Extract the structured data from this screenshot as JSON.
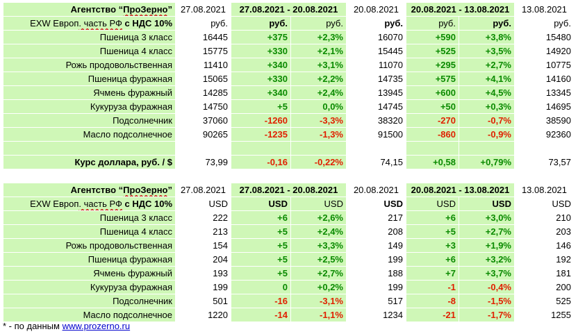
{
  "tables": [
    {
      "title_prefix": "Агентство “",
      "title_brand": "ПроЗерно",
      "title_suffix": "”",
      "date_a": "27.08.2021",
      "range_1": "27.08.2021 - 20.08.2021",
      "date_b": "20.08.2021",
      "range_2": "20.08.2021 - 13.08.2021",
      "date_c": "13.08.2021",
      "units_label_prefix": "EXW Европ",
      "units_label_mid": ". часть РФ",
      "units_label_suffix": " с НДС 10%",
      "units": [
        "руб.",
        "руб.",
        "руб.",
        "руб.",
        "руб.",
        "руб.",
        "руб."
      ],
      "rows": [
        {
          "name": "Пшеница 3 класс",
          "v1": "16445",
          "d1": "+375",
          "p1": "+2,3%",
          "v2": "16070",
          "d2": "+590",
          "p2": "+3,8%",
          "v3": "15480"
        },
        {
          "name": "Пшеница 4 класс",
          "v1": "15775",
          "d1": "+330",
          "p1": "+2,1%",
          "v2": "15445",
          "d2": "+525",
          "p2": "+3,5%",
          "v3": "14920"
        },
        {
          "name": "Рожь продовольственная",
          "v1": "11410",
          "d1": "+340",
          "p1": "+3,1%",
          "v2": "11070",
          "d2": "+295",
          "p2": "+2,7%",
          "v3": "10775"
        },
        {
          "name": "Пшеница фуражная",
          "v1": "15065",
          "d1": "+330",
          "p1": "+2,2%",
          "v2": "14735",
          "d2": "+575",
          "p2": "+4,1%",
          "v3": "14160"
        },
        {
          "name": "Ячмень фуражный",
          "v1": "14285",
          "d1": "+340",
          "p1": "+2,4%",
          "v2": "13945",
          "d2": "+600",
          "p2": "+4,5%",
          "v3": "13345"
        },
        {
          "name": "Кукуруза фуражная",
          "v1": "14750",
          "d1": "+5",
          "p1": "0,0%",
          "v2": "14745",
          "d2": "+50",
          "p2": "+0,3%",
          "v3": "14695"
        },
        {
          "name": "Подсолнечник",
          "v1": "37060",
          "d1": "-1260",
          "p1": "-3,3%",
          "v2": "38320",
          "d2": "-270",
          "p2": "-0,7%",
          "v3": "38590"
        },
        {
          "name": "Масло подсолнечное",
          "v1": "90265",
          "d1": "-1235",
          "p1": "-1,3%",
          "v2": "91500",
          "d2": "-860",
          "p2": "-0,9%",
          "v3": "92360"
        }
      ],
      "fx": {
        "name": "Курс доллара, руб. / $",
        "v1": "73,99",
        "d1": "-0,16",
        "p1": "-0,22%",
        "v2": "74,15",
        "d2": "+0,58",
        "p2": "+0,79%",
        "v3": "73,57"
      }
    },
    {
      "title_prefix": "Агентство “",
      "title_brand": "ПроЗерно",
      "title_suffix": "”",
      "date_a": "27.08.2021",
      "range_1": "27.08.2021 - 20.08.2021",
      "date_b": "20.08.2021",
      "range_2": "20.08.2021 - 13.08.2021",
      "date_c": "13.08.2021",
      "units_label_prefix": "EXW Европ",
      "units_label_mid": ". часть РФ",
      "units_label_suffix": " с НДС 10%",
      "units": [
        "USD",
        "USD",
        "USD",
        "USD",
        "USD",
        "USD",
        "USD"
      ],
      "rows": [
        {
          "name": "Пшеница 3 класс",
          "v1": "222",
          "d1": "+6",
          "p1": "+2,6%",
          "v2": "217",
          "d2": "+6",
          "p2": "+3,0%",
          "v3": "210"
        },
        {
          "name": "Пшеница 4 класс",
          "v1": "213",
          "d1": "+5",
          "p1": "+2,4%",
          "v2": "208",
          "d2": "+5",
          "p2": "+2,7%",
          "v3": "203"
        },
        {
          "name": "Рожь продовольственная",
          "v1": "154",
          "d1": "+5",
          "p1": "+3,3%",
          "v2": "149",
          "d2": "+3",
          "p2": "+1,9%",
          "v3": "146"
        },
        {
          "name": "Пшеница фуражная",
          "v1": "204",
          "d1": "+5",
          "p1": "+2,5%",
          "v2": "199",
          "d2": "+6",
          "p2": "+3,2%",
          "v3": "192"
        },
        {
          "name": "Ячмень фуражный",
          "v1": "193",
          "d1": "+5",
          "p1": "+2,7%",
          "v2": "188",
          "d2": "+7",
          "p2": "+3,7%",
          "v3": "181"
        },
        {
          "name": "Кукуруза фуражная",
          "v1": "199",
          "d1": "0",
          "p1": "+0,2%",
          "v2": "199",
          "d2": "-1",
          "p2": "-0,4%",
          "v3": "200"
        },
        {
          "name": "Подсолнечник",
          "v1": "501",
          "d1": "-16",
          "p1": "-3,1%",
          "v2": "517",
          "d2": "-8",
          "p2": "-1,5%",
          "v3": "525"
        },
        {
          "name": "Масло подсолнечное",
          "v1": "1220",
          "d1": "-14",
          "p1": "-1,1%",
          "v2": "1234",
          "d2": "-21",
          "p2": "-1,7%",
          "v3": "1255"
        }
      ]
    }
  ],
  "footer": {
    "prefix": "* - по данным ",
    "link": "www.prozerno.ru"
  }
}
